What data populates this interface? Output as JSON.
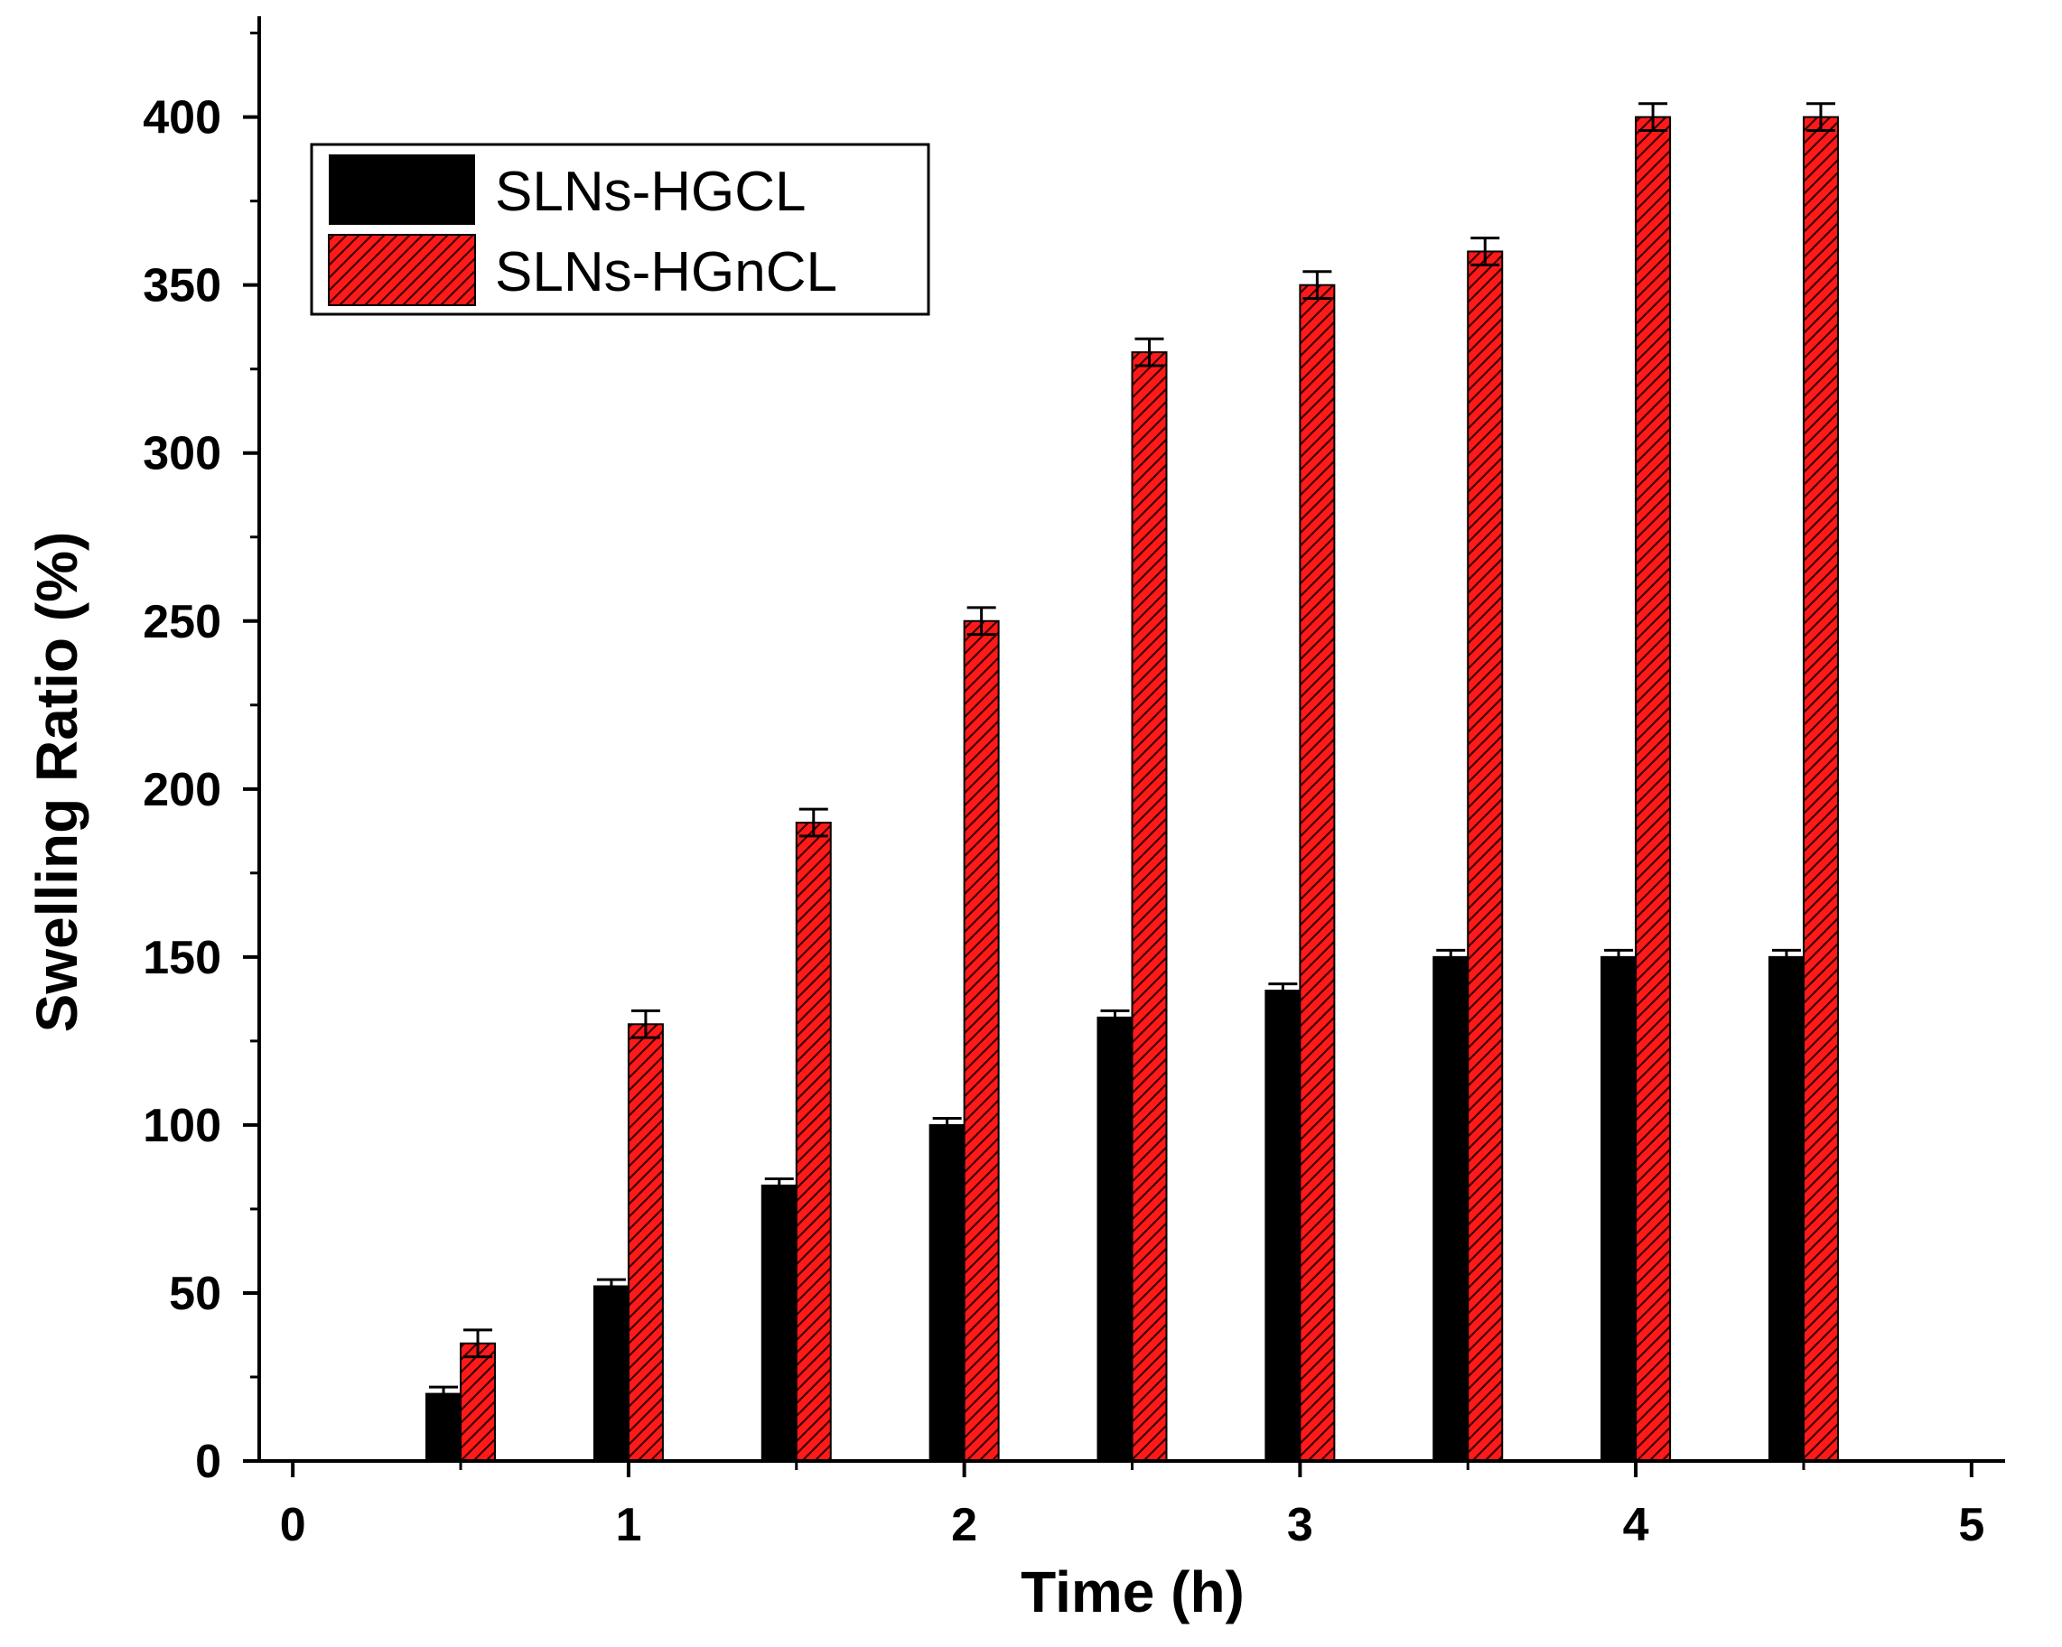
{
  "chart_data": {
    "type": "bar",
    "title": "",
    "xlabel": "Time (h)",
    "ylabel": "Swelling Ratio (%)",
    "x": [
      0.5,
      1.0,
      1.5,
      2.0,
      2.5,
      3.0,
      3.5,
      4.0,
      4.5
    ],
    "xlim": [
      -0.1,
      5.1
    ],
    "ylim": [
      0,
      430
    ],
    "x_ticks": [
      0,
      1,
      2,
      3,
      4,
      5
    ],
    "x_tick_labels": [
      "0",
      "1",
      "2",
      "3",
      "4",
      "5"
    ],
    "y_ticks": [
      0,
      50,
      100,
      150,
      200,
      250,
      300,
      350,
      400
    ],
    "y_tick_labels": [
      "0",
      "50",
      "100",
      "150",
      "200",
      "250",
      "300",
      "350",
      "400"
    ],
    "grid": false,
    "legend_position": "top-left",
    "series": [
      {
        "name": "SLNs-HGCL",
        "color": "#000000",
        "pattern": "solid",
        "values": [
          20,
          52,
          82,
          100,
          132,
          140,
          150,
          150,
          150
        ],
        "errors": [
          2,
          2,
          2,
          2,
          2,
          2,
          2,
          2,
          2
        ]
      },
      {
        "name": "SLNs-HGnCL",
        "color": "#ff0000",
        "pattern": "hatched",
        "values": [
          35,
          130,
          190,
          250,
          330,
          350,
          360,
          400,
          400
        ],
        "errors": [
          4,
          4,
          4,
          4,
          4,
          4,
          4,
          4,
          4
        ]
      }
    ]
  }
}
